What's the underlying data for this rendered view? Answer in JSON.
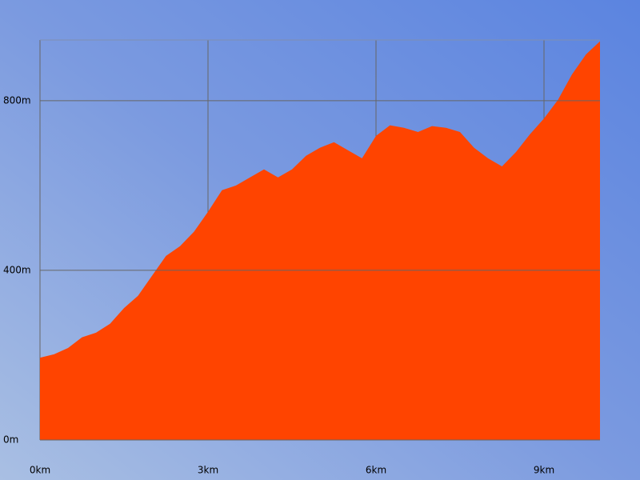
{
  "chart_data": {
    "type": "area",
    "x": [
      0,
      0.25,
      0.5,
      0.75,
      1,
      1.25,
      1.5,
      1.75,
      2,
      2.25,
      2.5,
      2.75,
      3,
      3.25,
      3.5,
      3.75,
      4,
      4.25,
      4.5,
      4.75,
      5,
      5.25,
      5.5,
      5.75,
      6,
      6.25,
      6.5,
      6.75,
      7,
      7.25,
      7.5,
      7.75,
      8,
      8.25,
      8.5,
      8.75,
      9,
      9.25,
      9.5,
      9.75,
      10
    ],
    "values": [
      194,
      202,
      217,
      242,
      253,
      274,
      311,
      340,
      387,
      434,
      457,
      491,
      538,
      589,
      600,
      619,
      638,
      619,
      638,
      670,
      689,
      702,
      683,
      664,
      717,
      742,
      736,
      726,
      740,
      736,
      726,
      689,
      664,
      645,
      679,
      721,
      758,
      802,
      862,
      909,
      940
    ],
    "color": "#ff4400",
    "xlim": [
      0,
      10
    ],
    "xticks": [
      {
        "value": 0,
        "label": "0km"
      },
      {
        "value": 3,
        "label": "3km"
      },
      {
        "value": 6,
        "label": "6km"
      },
      {
        "value": 9,
        "label": "9km"
      }
    ],
    "ylim": [
      0,
      943
    ],
    "yticks": [
      {
        "value": 0,
        "label": "0m"
      },
      {
        "value": 400,
        "label": "400m"
      },
      {
        "value": 800,
        "label": "800m"
      }
    ],
    "grid": true
  }
}
